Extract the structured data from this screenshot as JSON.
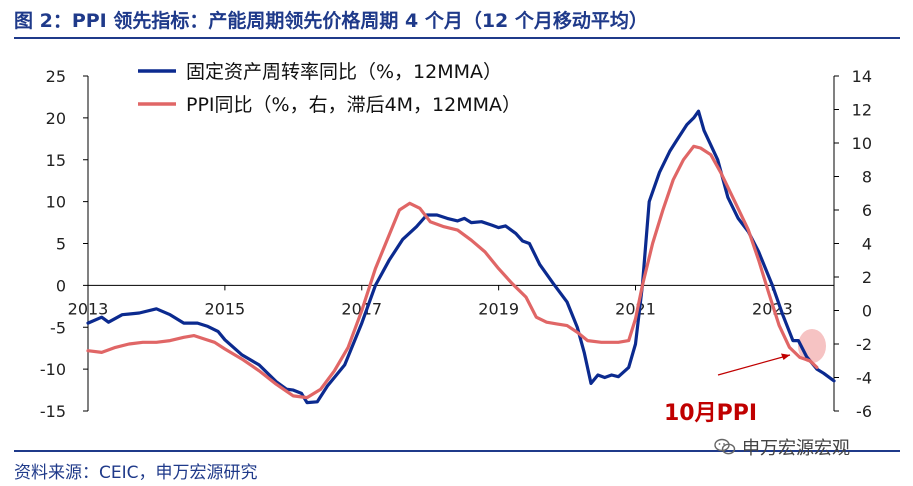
{
  "header": {
    "title": "图 2：PPI 领先指标：产能周期领先价格周期 4 个月（12 个月移动平均）"
  },
  "footer": {
    "source": "资料来源：CEIC，申万宏源研究",
    "watermark": "申万宏源宏观"
  },
  "annotation": {
    "label": "10月PPI",
    "color": "#c00000"
  },
  "colors": {
    "series1": "#0b2a8f",
    "series2": "#e06666",
    "axis": "#000000",
    "highlight": "#f4b8b8"
  },
  "chart_data": {
    "type": "line",
    "x_ticks": [
      "2013",
      "2015",
      "2017",
      "2019",
      "2021",
      "2023"
    ],
    "x_range": [
      2013.0,
      2023.9
    ],
    "y_left_ticks": [
      "25",
      "20",
      "15",
      "10",
      "5",
      "0",
      "-5",
      "-10",
      "-15"
    ],
    "y_left_range": [
      -15,
      25
    ],
    "y_right_ticks": [
      "14",
      "12",
      "10",
      "8",
      "6",
      "4",
      "2",
      "0",
      "-2",
      "-4",
      "-6"
    ],
    "y_right_range": [
      -6,
      14
    ],
    "legend_position": "top-center",
    "series": [
      {
        "name": "固定资产周转率同比（%，12MMA）",
        "axis": "left",
        "points": [
          [
            2013.0,
            -4.5
          ],
          [
            2013.2,
            -3.8
          ],
          [
            2013.3,
            -4.4
          ],
          [
            2013.5,
            -3.5
          ],
          [
            2013.75,
            -3.3
          ],
          [
            2014.0,
            -2.8
          ],
          [
            2014.2,
            -3.5
          ],
          [
            2014.4,
            -4.5
          ],
          [
            2014.6,
            -4.5
          ],
          [
            2014.75,
            -4.9
          ],
          [
            2014.9,
            -5.5
          ],
          [
            2015.0,
            -6.5
          ],
          [
            2015.25,
            -8.3
          ],
          [
            2015.5,
            -9.5
          ],
          [
            2015.75,
            -11.5
          ],
          [
            2015.9,
            -12.4
          ],
          [
            2016.0,
            -12.5
          ],
          [
            2016.12,
            -12.9
          ],
          [
            2016.2,
            -14.0
          ],
          [
            2016.35,
            -13.9
          ],
          [
            2016.5,
            -12.0
          ],
          [
            2016.75,
            -9.5
          ],
          [
            2017.0,
            -4.5
          ],
          [
            2017.2,
            0.0
          ],
          [
            2017.4,
            3.0
          ],
          [
            2017.6,
            5.5
          ],
          [
            2017.8,
            7.0
          ],
          [
            2017.95,
            8.4
          ],
          [
            2018.1,
            8.4
          ],
          [
            2018.25,
            8.0
          ],
          [
            2018.4,
            7.7
          ],
          [
            2018.5,
            8.0
          ],
          [
            2018.6,
            7.5
          ],
          [
            2018.75,
            7.6
          ],
          [
            2018.9,
            7.2
          ],
          [
            2019.0,
            6.9
          ],
          [
            2019.1,
            7.1
          ],
          [
            2019.25,
            6.2
          ],
          [
            2019.35,
            5.3
          ],
          [
            2019.45,
            5.0
          ],
          [
            2019.6,
            2.5
          ],
          [
            2019.8,
            0.2
          ],
          [
            2020.0,
            -2.0
          ],
          [
            2020.15,
            -5.0
          ],
          [
            2020.25,
            -8.0
          ],
          [
            2020.35,
            -11.7
          ],
          [
            2020.45,
            -10.7
          ],
          [
            2020.55,
            -11.0
          ],
          [
            2020.65,
            -10.7
          ],
          [
            2020.75,
            -10.9
          ],
          [
            2020.9,
            -9.8
          ],
          [
            2021.0,
            -7.0
          ],
          [
            2021.1,
            0.0
          ],
          [
            2021.2,
            10.0
          ],
          [
            2021.35,
            13.5
          ],
          [
            2021.5,
            16.0
          ],
          [
            2021.6,
            17.3
          ],
          [
            2021.75,
            19.2
          ],
          [
            2021.85,
            20.0
          ],
          [
            2021.92,
            20.8
          ],
          [
            2022.0,
            18.5
          ],
          [
            2022.2,
            15.0
          ],
          [
            2022.35,
            10.5
          ],
          [
            2022.5,
            8.0
          ],
          [
            2022.65,
            6.4
          ],
          [
            2022.8,
            4.0
          ],
          [
            2023.0,
            0.0
          ],
          [
            2023.15,
            -3.5
          ],
          [
            2023.3,
            -6.6
          ],
          [
            2023.38,
            -6.6
          ],
          [
            2023.5,
            -8.5
          ],
          [
            2023.65,
            -10.0
          ],
          [
            2023.75,
            -10.5
          ],
          [
            2023.9,
            -11.4
          ]
        ]
      },
      {
        "name": "PPI同比（%，右，滞后4M，12MMA）",
        "axis": "right",
        "points": [
          [
            2013.0,
            -2.4
          ],
          [
            2013.2,
            -2.5
          ],
          [
            2013.4,
            -2.2
          ],
          [
            2013.6,
            -2.0
          ],
          [
            2013.8,
            -1.9
          ],
          [
            2014.0,
            -1.9
          ],
          [
            2014.2,
            -1.8
          ],
          [
            2014.4,
            -1.6
          ],
          [
            2014.55,
            -1.5
          ],
          [
            2014.7,
            -1.7
          ],
          [
            2014.85,
            -1.9
          ],
          [
            2015.0,
            -2.3
          ],
          [
            2015.25,
            -2.9
          ],
          [
            2015.5,
            -3.6
          ],
          [
            2015.75,
            -4.4
          ],
          [
            2016.0,
            -5.1
          ],
          [
            2016.2,
            -5.2
          ],
          [
            2016.4,
            -4.7
          ],
          [
            2016.6,
            -3.6
          ],
          [
            2016.8,
            -2.2
          ],
          [
            2017.0,
            0.0
          ],
          [
            2017.2,
            2.5
          ],
          [
            2017.4,
            4.5
          ],
          [
            2017.55,
            6.0
          ],
          [
            2017.7,
            6.4
          ],
          [
            2017.85,
            6.1
          ],
          [
            2018.0,
            5.3
          ],
          [
            2018.2,
            5.0
          ],
          [
            2018.4,
            4.8
          ],
          [
            2018.6,
            4.2
          ],
          [
            2018.8,
            3.5
          ],
          [
            2019.0,
            2.5
          ],
          [
            2019.2,
            1.6
          ],
          [
            2019.4,
            0.8
          ],
          [
            2019.55,
            -0.4
          ],
          [
            2019.7,
            -0.7
          ],
          [
            2019.85,
            -0.8
          ],
          [
            2020.0,
            -0.9
          ],
          [
            2020.15,
            -1.3
          ],
          [
            2020.3,
            -1.8
          ],
          [
            2020.5,
            -1.9
          ],
          [
            2020.75,
            -1.9
          ],
          [
            2020.9,
            -1.8
          ],
          [
            2021.0,
            -0.5
          ],
          [
            2021.1,
            1.5
          ],
          [
            2021.25,
            4.0
          ],
          [
            2021.4,
            6.0
          ],
          [
            2021.55,
            7.8
          ],
          [
            2021.7,
            9.0
          ],
          [
            2021.85,
            9.8
          ],
          [
            2021.95,
            9.7
          ],
          [
            2022.1,
            9.3
          ],
          [
            2022.25,
            8.2
          ],
          [
            2022.45,
            6.5
          ],
          [
            2022.65,
            4.8
          ],
          [
            2022.8,
            3.0
          ],
          [
            2022.95,
            1.0
          ],
          [
            2023.1,
            -0.9
          ],
          [
            2023.25,
            -2.2
          ],
          [
            2023.4,
            -2.8
          ],
          [
            2023.55,
            -3.0
          ],
          [
            2023.65,
            -3.4
          ]
        ]
      }
    ]
  }
}
